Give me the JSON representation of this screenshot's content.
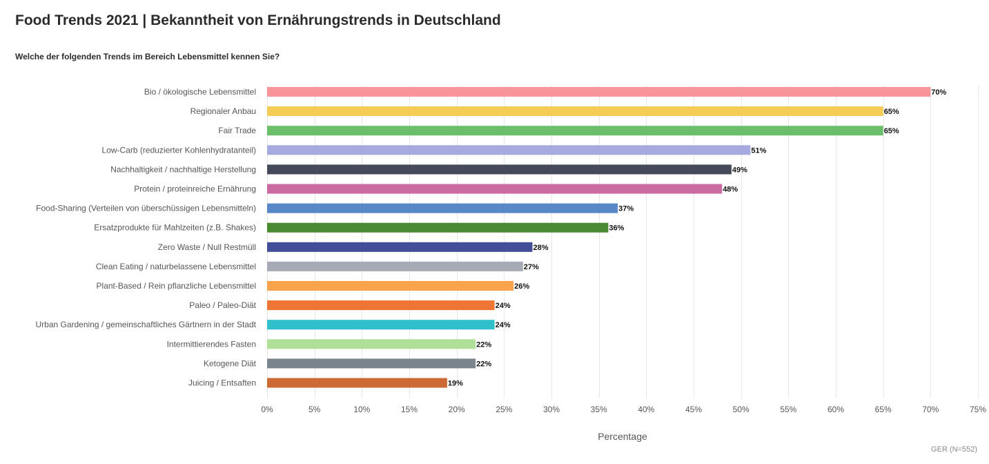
{
  "chart_data": {
    "type": "bar",
    "orientation": "horizontal",
    "title": "Food Trends 2021 | Bekanntheit von Ernährungstrends in Deutschland",
    "subtitle": "Welche der folgenden Trends im Bereich Lebensmittel kennen Sie?",
    "xlabel": "Percentage",
    "xlim": [
      0,
      75
    ],
    "xtick_step": 5,
    "value_suffix": "%",
    "grid": true,
    "source_note": "GER (N=552)",
    "categories": [
      "Bio / ökologische Lebensmittel",
      "Regionaler Anbau",
      "Fair Trade",
      "Low-Carb (reduzierter Kohlenhydratanteil)",
      "Nachhaltigkeit / nachhaltige Herstellung",
      "Protein / proteinreiche Ernährung",
      "Food-Sharing (Verteilen von überschüssigen Lebensmitteln)",
      "Ersatzprodukte für Mahlzeiten (z.B. Shakes)",
      "Zero Waste / Null Restmüll",
      "Clean Eating / naturbelassene Lebensmittel",
      "Plant-Based / Rein pflanzliche Lebensmittel",
      "Paleo / Paleo-Diät",
      "Urban Gardening / gemeinschaftliches Gärtnern in der Stadt",
      "Intermittierendes Fasten",
      "Ketogene Diät",
      "Juicing / Entsaften"
    ],
    "values": [
      70,
      65,
      65,
      51,
      49,
      48,
      37,
      36,
      28,
      27,
      26,
      24,
      24,
      22,
      22,
      19
    ],
    "colors": [
      "#f7959b",
      "#f5cc55",
      "#6bbf6b",
      "#a6aade",
      "#454a5a",
      "#cc6aa3",
      "#5888c8",
      "#4a8a32",
      "#434e98",
      "#a6abb5",
      "#f7a44c",
      "#ef7534",
      "#30c0cc",
      "#b0df98",
      "#7b858e",
      "#cb6a34"
    ]
  }
}
